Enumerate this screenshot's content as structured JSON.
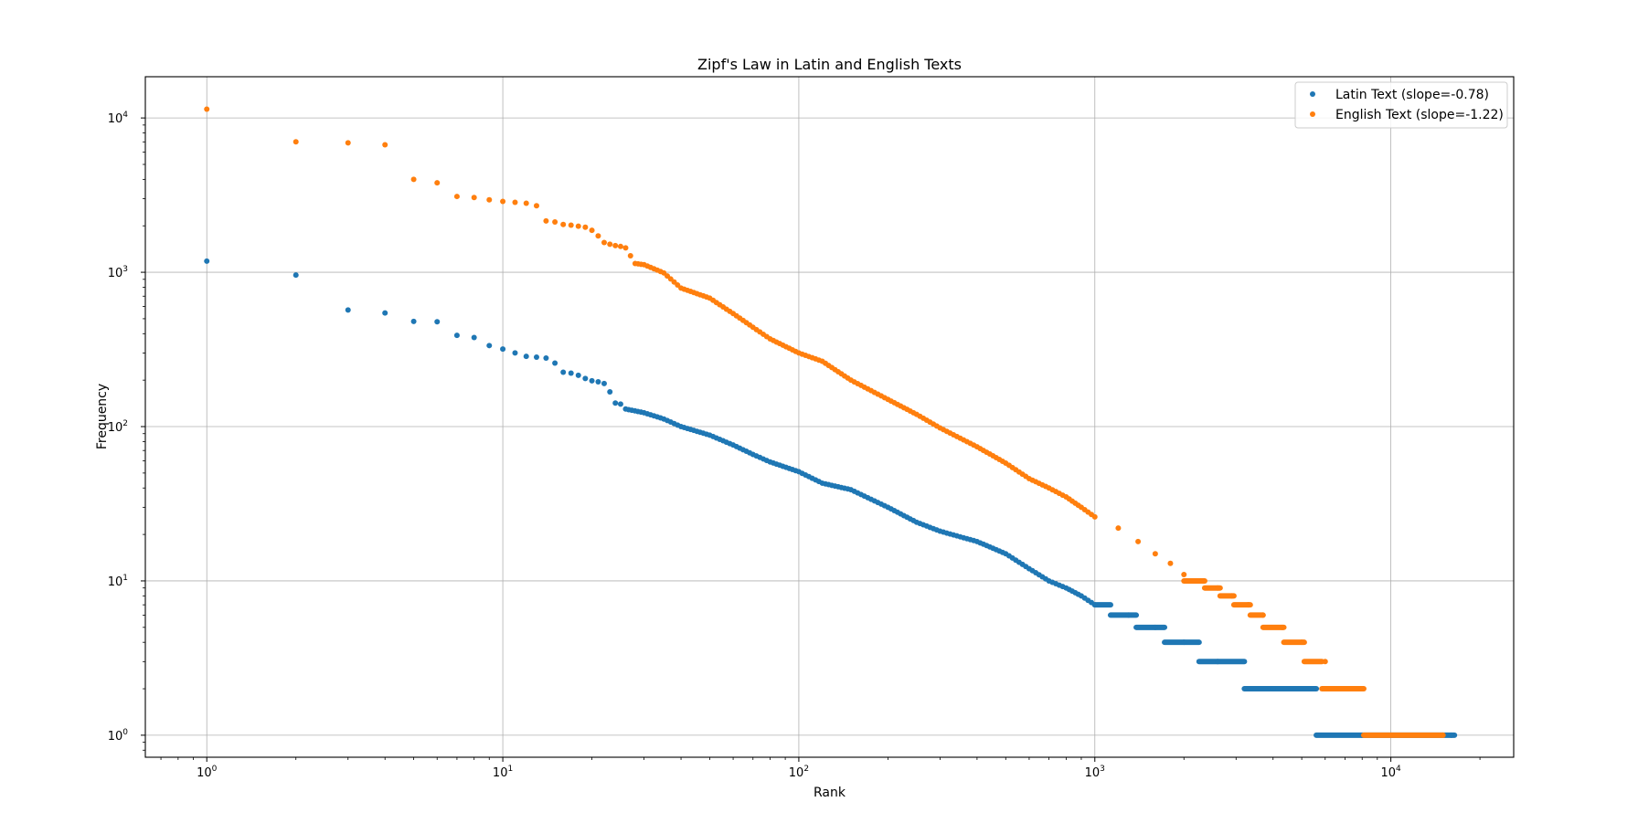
{
  "chart_data": {
    "type": "scatter",
    "title": "Zipf's Law in Latin and English Texts",
    "xlabel": "Rank",
    "ylabel": "Frequency",
    "xscale": "log",
    "yscale": "log",
    "xlim": [
      0.62,
      26000
    ],
    "ylim": [
      0.72,
      18500
    ],
    "grid": true,
    "legend_position": "top-right",
    "x_ticks": [
      {
        "value": 1,
        "base": "10",
        "exp": "0"
      },
      {
        "value": 10,
        "base": "10",
        "exp": "1"
      },
      {
        "value": 100,
        "base": "10",
        "exp": "2"
      },
      {
        "value": 1000,
        "base": "10",
        "exp": "3"
      },
      {
        "value": 10000,
        "base": "10",
        "exp": "4"
      }
    ],
    "y_ticks": [
      {
        "value": 1,
        "base": "10",
        "exp": "0"
      },
      {
        "value": 10,
        "base": "10",
        "exp": "1"
      },
      {
        "value": 100,
        "base": "10",
        "exp": "2"
      },
      {
        "value": 1000,
        "base": "10",
        "exp": "3"
      },
      {
        "value": 10000,
        "base": "10",
        "exp": "4"
      }
    ],
    "series": [
      {
        "name": "Latin Text (slope=-0.78)",
        "color": "#1f77b4",
        "points": [
          [
            1,
            1180
          ],
          [
            2,
            960
          ],
          [
            3,
            570
          ],
          [
            4,
            545
          ],
          [
            5,
            480
          ],
          [
            6,
            478
          ],
          [
            7,
            390
          ],
          [
            8,
            378
          ],
          [
            9,
            335
          ],
          [
            10,
            318
          ],
          [
            11,
            300
          ],
          [
            12,
            285
          ],
          [
            13,
            282
          ],
          [
            14,
            278
          ],
          [
            15,
            258
          ],
          [
            16,
            225
          ],
          [
            17,
            222
          ],
          [
            18,
            215
          ],
          [
            19,
            205
          ],
          [
            20,
            198
          ],
          [
            21,
            195
          ],
          [
            22,
            190
          ],
          [
            23,
            168
          ],
          [
            24,
            142
          ],
          [
            25,
            140
          ],
          [
            26,
            130
          ],
          [
            30,
            123
          ],
          [
            35,
            112
          ],
          [
            40,
            100
          ],
          [
            50,
            88
          ],
          [
            60,
            76
          ],
          [
            70,
            66
          ],
          [
            80,
            59
          ],
          [
            100,
            51
          ],
          [
            120,
            43
          ],
          [
            150,
            39
          ],
          [
            200,
            30
          ],
          [
            250,
            24
          ],
          [
            300,
            21
          ],
          [
            400,
            18
          ],
          [
            500,
            15
          ],
          [
            600,
            12
          ],
          [
            700,
            10
          ],
          [
            800,
            9
          ],
          [
            900,
            8
          ],
          [
            1000,
            7
          ],
          [
            1300,
            6
          ],
          [
            1600,
            5
          ],
          [
            2000,
            4
          ],
          [
            2600,
            3
          ],
          [
            4000,
            2
          ],
          [
            8000,
            1
          ],
          [
            16000,
            1
          ]
        ],
        "steps": [
          [
            1000,
            1130,
            7
          ],
          [
            1130,
            1380,
            6
          ],
          [
            1380,
            1720,
            5
          ],
          [
            1720,
            2250,
            4
          ],
          [
            2250,
            3200,
            3
          ],
          [
            3200,
            5600,
            2
          ],
          [
            5600,
            16400,
            1
          ]
        ]
      },
      {
        "name": "English Text (slope=-1.22)",
        "color": "#ff7f0e",
        "points": [
          [
            1,
            11400
          ],
          [
            2,
            7000
          ],
          [
            3,
            6900
          ],
          [
            4,
            6700
          ],
          [
            5,
            4000
          ],
          [
            6,
            3800
          ],
          [
            7,
            3100
          ],
          [
            8,
            3050
          ],
          [
            9,
            2950
          ],
          [
            10,
            2880
          ],
          [
            11,
            2840
          ],
          [
            12,
            2800
          ],
          [
            13,
            2700
          ],
          [
            14,
            2150
          ],
          [
            15,
            2120
          ],
          [
            16,
            2040
          ],
          [
            17,
            2020
          ],
          [
            18,
            1990
          ],
          [
            19,
            1960
          ],
          [
            20,
            1870
          ],
          [
            21,
            1720
          ],
          [
            22,
            1560
          ],
          [
            23,
            1520
          ],
          [
            24,
            1490
          ],
          [
            25,
            1470
          ],
          [
            26,
            1440
          ],
          [
            27,
            1280
          ],
          [
            28,
            1140
          ],
          [
            30,
            1120
          ],
          [
            35,
            990
          ],
          [
            40,
            790
          ],
          [
            50,
            680
          ],
          [
            60,
            540
          ],
          [
            70,
            440
          ],
          [
            80,
            370
          ],
          [
            100,
            300
          ],
          [
            120,
            265
          ],
          [
            150,
            200
          ],
          [
            200,
            150
          ],
          [
            250,
            120
          ],
          [
            300,
            98
          ],
          [
            400,
            74
          ],
          [
            500,
            58
          ],
          [
            600,
            46
          ],
          [
            700,
            40
          ],
          [
            800,
            35
          ],
          [
            900,
            30
          ],
          [
            1000,
            26
          ],
          [
            1200,
            22
          ],
          [
            1400,
            18
          ],
          [
            1600,
            15
          ],
          [
            1800,
            13
          ],
          [
            2000,
            11
          ],
          [
            2300,
            10
          ],
          [
            2600,
            9
          ],
          [
            2900,
            8
          ],
          [
            3300,
            7
          ],
          [
            3700,
            6
          ],
          [
            4300,
            5
          ],
          [
            5000,
            4
          ],
          [
            6000,
            3
          ],
          [
            8000,
            2
          ],
          [
            15000,
            1
          ]
        ],
        "steps": [
          [
            2000,
            2350,
            10
          ],
          [
            2350,
            2650,
            9
          ],
          [
            2650,
            2950,
            8
          ],
          [
            2950,
            3350,
            7
          ],
          [
            3350,
            3700,
            6
          ],
          [
            3700,
            4350,
            5
          ],
          [
            4350,
            5100,
            4
          ],
          [
            5100,
            5850,
            3
          ],
          [
            5850,
            8100,
            2
          ],
          [
            8100,
            15000,
            1
          ]
        ]
      }
    ]
  }
}
